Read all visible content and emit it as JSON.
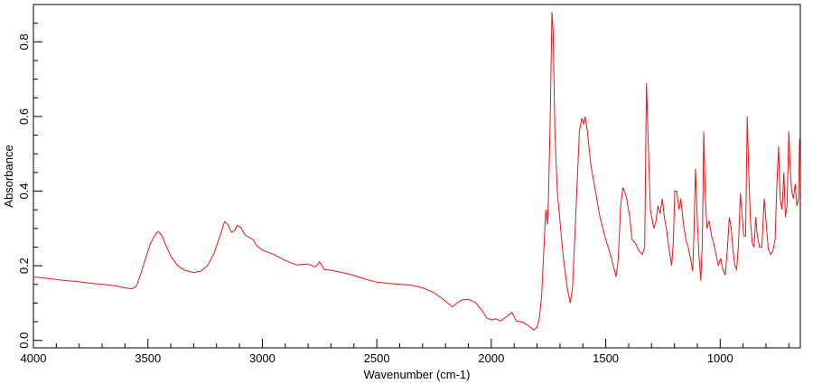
{
  "chart_data": {
    "type": "line",
    "xlabel": "Wavenumber (cm-1)",
    "ylabel": "Absorbance",
    "xlim": [
      4000,
      650
    ],
    "ylim": [
      -0.02,
      0.9
    ],
    "x_ticks": [
      4000,
      3500,
      3000,
      2500,
      2000,
      1500,
      1000
    ],
    "y_ticks": [
      0.0,
      0.2,
      0.4,
      0.6,
      0.8
    ],
    "x_tick_labels": [
      "4000",
      "3500",
      "3000",
      "2500",
      "2000",
      "1500",
      "1000"
    ],
    "y_tick_labels": [
      "0.0",
      "0.2",
      "0.4",
      "0.6",
      "0.8"
    ],
    "grid": false,
    "line_color": "#e8171b",
    "series": [
      {
        "points": [
          [
            4000,
            0.17
          ],
          [
            3950,
            0.167
          ],
          [
            3900,
            0.163
          ],
          [
            3850,
            0.16
          ],
          [
            3800,
            0.157
          ],
          [
            3750,
            0.153
          ],
          [
            3700,
            0.15
          ],
          [
            3650,
            0.147
          ],
          [
            3600,
            0.141
          ],
          [
            3570,
            0.138
          ],
          [
            3550,
            0.145
          ],
          [
            3530,
            0.18
          ],
          [
            3510,
            0.22
          ],
          [
            3490,
            0.258
          ],
          [
            3470,
            0.282
          ],
          [
            3455,
            0.292
          ],
          [
            3440,
            0.282
          ],
          [
            3420,
            0.253
          ],
          [
            3400,
            0.225
          ],
          [
            3370,
            0.2
          ],
          [
            3340,
            0.188
          ],
          [
            3300,
            0.182
          ],
          [
            3270,
            0.185
          ],
          [
            3240,
            0.2
          ],
          [
            3210,
            0.235
          ],
          [
            3185,
            0.28
          ],
          [
            3165,
            0.318
          ],
          [
            3150,
            0.31
          ],
          [
            3135,
            0.29
          ],
          [
            3120,
            0.295
          ],
          [
            3110,
            0.308
          ],
          [
            3095,
            0.303
          ],
          [
            3075,
            0.282
          ],
          [
            3055,
            0.275
          ],
          [
            3040,
            0.27
          ],
          [
            3025,
            0.254
          ],
          [
            3000,
            0.242
          ],
          [
            2950,
            0.23
          ],
          [
            2900,
            0.214
          ],
          [
            2850,
            0.202
          ],
          [
            2800,
            0.205
          ],
          [
            2770,
            0.196
          ],
          [
            2750,
            0.21
          ],
          [
            2730,
            0.19
          ],
          [
            2700,
            0.188
          ],
          [
            2650,
            0.182
          ],
          [
            2600,
            0.174
          ],
          [
            2550,
            0.164
          ],
          [
            2500,
            0.156
          ],
          [
            2450,
            0.153
          ],
          [
            2400,
            0.15
          ],
          [
            2350,
            0.148
          ],
          [
            2300,
            0.141
          ],
          [
            2250,
            0.128
          ],
          [
            2200,
            0.105
          ],
          [
            2170,
            0.09
          ],
          [
            2150,
            0.1
          ],
          [
            2130,
            0.108
          ],
          [
            2100,
            0.11
          ],
          [
            2070,
            0.102
          ],
          [
            2040,
            0.08
          ],
          [
            2020,
            0.06
          ],
          [
            2000,
            0.055
          ],
          [
            1980,
            0.058
          ],
          [
            1960,
            0.052
          ],
          [
            1930,
            0.065
          ],
          [
            1910,
            0.075
          ],
          [
            1890,
            0.052
          ],
          [
            1860,
            0.048
          ],
          [
            1840,
            0.04
          ],
          [
            1815,
            0.028
          ],
          [
            1800,
            0.035
          ],
          [
            1790,
            0.06
          ],
          [
            1780,
            0.12
          ],
          [
            1770,
            0.25
          ],
          [
            1762,
            0.35
          ],
          [
            1755,
            0.31
          ],
          [
            1750,
            0.38
          ],
          [
            1742,
            0.62
          ],
          [
            1735,
            0.88
          ],
          [
            1730,
            0.83
          ],
          [
            1722,
            0.56
          ],
          [
            1712,
            0.4
          ],
          [
            1700,
            0.32
          ],
          [
            1685,
            0.22
          ],
          [
            1668,
            0.14
          ],
          [
            1655,
            0.1
          ],
          [
            1645,
            0.14
          ],
          [
            1635,
            0.28
          ],
          [
            1625,
            0.42
          ],
          [
            1615,
            0.56
          ],
          [
            1605,
            0.595
          ],
          [
            1597,
            0.58
          ],
          [
            1590,
            0.6
          ],
          [
            1580,
            0.56
          ],
          [
            1565,
            0.47
          ],
          [
            1545,
            0.4
          ],
          [
            1525,
            0.33
          ],
          [
            1500,
            0.27
          ],
          [
            1475,
            0.22
          ],
          [
            1455,
            0.17
          ],
          [
            1445,
            0.22
          ],
          [
            1435,
            0.36
          ],
          [
            1425,
            0.41
          ],
          [
            1410,
            0.385
          ],
          [
            1395,
            0.33
          ],
          [
            1385,
            0.27
          ],
          [
            1370,
            0.26
          ],
          [
            1355,
            0.24
          ],
          [
            1340,
            0.23
          ],
          [
            1330,
            0.25
          ],
          [
            1322,
            0.69
          ],
          [
            1315,
            0.54
          ],
          [
            1305,
            0.35
          ],
          [
            1290,
            0.3
          ],
          [
            1280,
            0.32
          ],
          [
            1272,
            0.36
          ],
          [
            1262,
            0.34
          ],
          [
            1253,
            0.38
          ],
          [
            1244,
            0.33
          ],
          [
            1235,
            0.3
          ],
          [
            1225,
            0.25
          ],
          [
            1212,
            0.2
          ],
          [
            1205,
            0.26
          ],
          [
            1198,
            0.4
          ],
          [
            1190,
            0.4
          ],
          [
            1180,
            0.35
          ],
          [
            1172,
            0.38
          ],
          [
            1160,
            0.31
          ],
          [
            1150,
            0.27
          ],
          [
            1140,
            0.25
          ],
          [
            1130,
            0.22
          ],
          [
            1120,
            0.185
          ],
          [
            1114,
            0.3
          ],
          [
            1108,
            0.46
          ],
          [
            1100,
            0.32
          ],
          [
            1092,
            0.22
          ],
          [
            1085,
            0.16
          ],
          [
            1078,
            0.26
          ],
          [
            1072,
            0.56
          ],
          [
            1066,
            0.4
          ],
          [
            1058,
            0.3
          ],
          [
            1048,
            0.32
          ],
          [
            1038,
            0.28
          ],
          [
            1028,
            0.26
          ],
          [
            1018,
            0.23
          ],
          [
            1008,
            0.2
          ],
          [
            998,
            0.22
          ],
          [
            988,
            0.19
          ],
          [
            978,
            0.175
          ],
          [
            968,
            0.25
          ],
          [
            960,
            0.33
          ],
          [
            952,
            0.3
          ],
          [
            944,
            0.24
          ],
          [
            936,
            0.2
          ],
          [
            928,
            0.19
          ],
          [
            920,
            0.26
          ],
          [
            912,
            0.395
          ],
          [
            905,
            0.34
          ],
          [
            897,
            0.28
          ],
          [
            889,
            0.28
          ],
          [
            882,
            0.6
          ],
          [
            876,
            0.47
          ],
          [
            868,
            0.32
          ],
          [
            860,
            0.26
          ],
          [
            852,
            0.25
          ],
          [
            845,
            0.33
          ],
          [
            838,
            0.28
          ],
          [
            828,
            0.25
          ],
          [
            818,
            0.25
          ],
          [
            808,
            0.38
          ],
          [
            800,
            0.32
          ],
          [
            790,
            0.245
          ],
          [
            780,
            0.23
          ],
          [
            770,
            0.24
          ],
          [
            760,
            0.27
          ],
          [
            752,
            0.42
          ],
          [
            745,
            0.52
          ],
          [
            738,
            0.38
          ],
          [
            730,
            0.35
          ],
          [
            722,
            0.45
          ],
          [
            715,
            0.33
          ],
          [
            708,
            0.36
          ],
          [
            700,
            0.56
          ],
          [
            695,
            0.47
          ],
          [
            688,
            0.4
          ],
          [
            680,
            0.38
          ],
          [
            672,
            0.42
          ],
          [
            665,
            0.36
          ],
          [
            658,
            0.38
          ],
          [
            653,
            0.54
          ]
        ]
      }
    ]
  }
}
